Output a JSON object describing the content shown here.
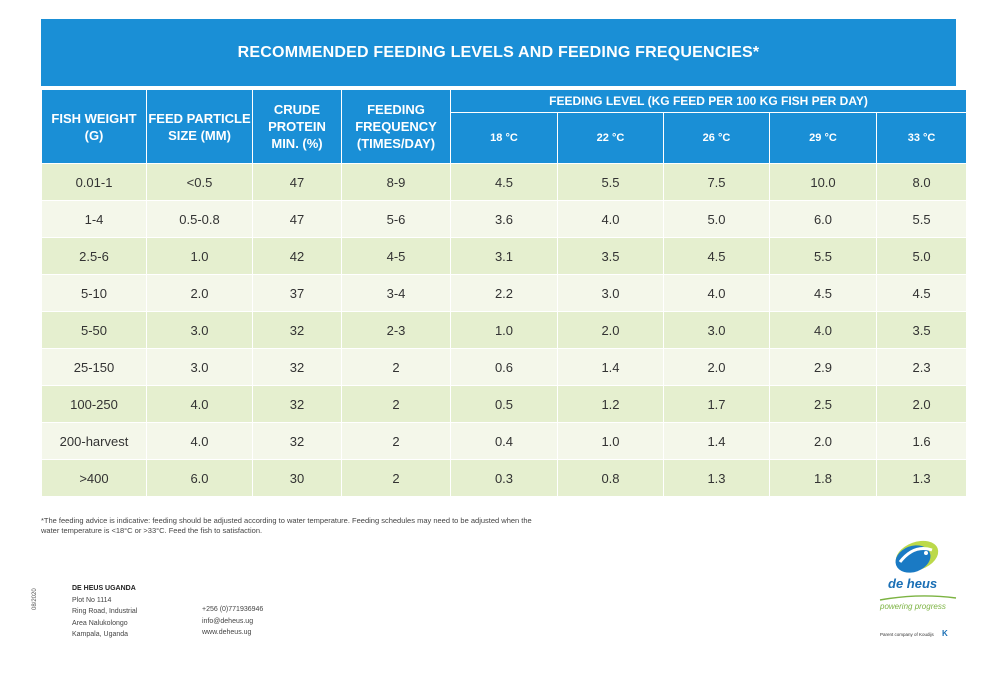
{
  "title": "RECOMMENDED FEEDING LEVELS AND FEEDING FREQUENCIES*",
  "table": {
    "headers": {
      "fish_weight": "FISH WEIGHT (G)",
      "feed_particle": "FEED PARTICLE SIZE (MM)",
      "crude_protein": "CRUDE PROTEIN MIN. (%)",
      "feeding_frequency": "FEEDING FREQUENCY (TIMES/DAY)",
      "feeding_level": "FEEDING LEVEL (KG FEED PER 100 KG FISH PER DAY)",
      "temps": [
        "18 °C",
        "22 °C",
        "26 °C",
        "29 °C",
        "33 °C"
      ]
    },
    "rows": [
      [
        "0.01-1",
        "<0.5",
        "47",
        "8-9",
        "4.5",
        "5.5",
        "7.5",
        "10.0",
        "8.0"
      ],
      [
        "1-4",
        "0.5-0.8",
        "47",
        "5-6",
        "3.6",
        "4.0",
        "5.0",
        "6.0",
        "5.5"
      ],
      [
        "2.5-6",
        "1.0",
        "42",
        "4-5",
        "3.1",
        "3.5",
        "4.5",
        "5.5",
        "5.0"
      ],
      [
        "5-10",
        "2.0",
        "37",
        "3-4",
        "2.2",
        "3.0",
        "4.0",
        "4.5",
        "4.5"
      ],
      [
        "5-50",
        "3.0",
        "32",
        "2-3",
        "1.0",
        "2.0",
        "3.0",
        "4.0",
        "3.5"
      ],
      [
        "25-150",
        "3.0",
        "32",
        "2",
        "0.6",
        "1.4",
        "2.0",
        "2.9",
        "2.3"
      ],
      [
        "100-250",
        "4.0",
        "32",
        "2",
        "0.5",
        "1.2",
        "1.7",
        "2.5",
        "2.0"
      ],
      [
        "200-harvest",
        "4.0",
        "32",
        "2",
        "0.4",
        "1.0",
        "1.4",
        "2.0",
        "1.6"
      ],
      [
        ">400",
        "6.0",
        "30",
        "2",
        "0.3",
        "0.8",
        "1.3",
        "1.8",
        "1.3"
      ]
    ]
  },
  "footnote": "*The feeding advice is indicative: feeding should be adjusted according to water temperature. Feeding schedules may need to be adjusted when the water temperature is <18°C or >33°C. Feed the fish to satisfaction.",
  "doc_code": "08/2020",
  "company": {
    "name": "DE HEUS UGANDA",
    "address": [
      "Plot No 1114",
      "Ring Road, Industrial",
      "Area Nalukolongo",
      "Kampala, Uganda"
    ],
    "phone": "+256 (0)771936946",
    "email": "info@deheus.ug",
    "web": "www.deheus.ug"
  },
  "brand": {
    "name": "de heus",
    "tagline": "powering progress",
    "parent": "Parent company of Koudijs",
    "badge": "K",
    "colors": {
      "blue": "#1a8fd6",
      "dark_blue": "#1a6fb5",
      "green": "#7cb342"
    }
  }
}
